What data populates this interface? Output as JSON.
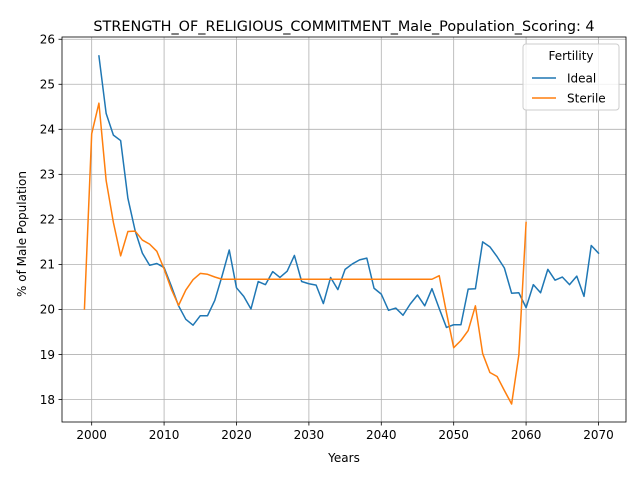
{
  "chart_data": {
    "type": "line",
    "title": "STRENGTH_OF_RELIGIOUS_COMMITMENT_Male_Population_Scoring: 4",
    "xlabel": "Years",
    "ylabel": "% of Male Population",
    "xlim": [
      1995.9,
      2073.8
    ],
    "ylim": [
      17.5,
      26.05
    ],
    "xticks": [
      2000,
      2010,
      2020,
      2030,
      2040,
      2050,
      2060,
      2070
    ],
    "yticks": [
      18,
      19,
      20,
      21,
      22,
      23,
      24,
      25,
      26
    ],
    "grid": true,
    "legend": {
      "title": "Fertility",
      "position": "top-right"
    },
    "series": [
      {
        "name": "Ideal",
        "color": "#1f77b4",
        "points": [
          [
            2001,
            25.63
          ],
          [
            2002,
            24.35
          ],
          [
            2003,
            23.87
          ],
          [
            2004,
            23.75
          ],
          [
            2005,
            22.47
          ],
          [
            2006,
            21.75
          ],
          [
            2007,
            21.25
          ],
          [
            2008,
            20.98
          ],
          [
            2009,
            21.02
          ],
          [
            2010,
            20.93
          ],
          [
            2011,
            20.52
          ],
          [
            2012,
            20.08
          ],
          [
            2013,
            19.78
          ],
          [
            2014,
            19.65
          ],
          [
            2015,
            19.86
          ],
          [
            2016,
            19.86
          ],
          [
            2017,
            20.2
          ],
          [
            2018,
            20.74
          ],
          [
            2019,
            21.32
          ],
          [
            2020,
            20.48
          ],
          [
            2021,
            20.29
          ],
          [
            2022,
            20.01
          ],
          [
            2023,
            20.62
          ],
          [
            2024,
            20.55
          ],
          [
            2025,
            20.84
          ],
          [
            2026,
            20.71
          ],
          [
            2027,
            20.85
          ],
          [
            2028,
            21.2
          ],
          [
            2029,
            20.62
          ],
          [
            2030,
            20.57
          ],
          [
            2031,
            20.54
          ],
          [
            2032,
            20.13
          ],
          [
            2033,
            20.71
          ],
          [
            2034,
            20.44
          ],
          [
            2035,
            20.89
          ],
          [
            2036,
            21.01
          ],
          [
            2037,
            21.1
          ],
          [
            2038,
            21.14
          ],
          [
            2039,
            20.47
          ],
          [
            2040,
            20.34
          ],
          [
            2041,
            19.98
          ],
          [
            2042,
            20.03
          ],
          [
            2043,
            19.87
          ],
          [
            2044,
            20.12
          ],
          [
            2045,
            20.32
          ],
          [
            2046,
            20.08
          ],
          [
            2047,
            20.46
          ],
          [
            2048,
            20.02
          ],
          [
            2049,
            19.6
          ],
          [
            2050,
            19.66
          ],
          [
            2051,
            19.66
          ],
          [
            2052,
            20.45
          ],
          [
            2053,
            20.46
          ],
          [
            2054,
            21.5
          ],
          [
            2055,
            21.39
          ],
          [
            2056,
            21.17
          ],
          [
            2057,
            20.92
          ],
          [
            2058,
            20.36
          ],
          [
            2059,
            20.37
          ],
          [
            2060,
            20.04
          ],
          [
            2061,
            20.55
          ],
          [
            2062,
            20.37
          ],
          [
            2063,
            20.89
          ],
          [
            2064,
            20.65
          ],
          [
            2065,
            20.72
          ],
          [
            2066,
            20.55
          ],
          [
            2067,
            20.74
          ],
          [
            2068,
            20.29
          ],
          [
            2069,
            21.42
          ],
          [
            2070,
            21.25
          ]
        ]
      },
      {
        "name": "Sterile",
        "color": "#ff7f0e",
        "points": [
          [
            1999,
            20.01
          ],
          [
            2000,
            23.9
          ],
          [
            2001,
            24.58
          ],
          [
            2002,
            22.86
          ],
          [
            2003,
            21.93
          ],
          [
            2004,
            21.19
          ],
          [
            2005,
            21.73
          ],
          [
            2006,
            21.74
          ],
          [
            2007,
            21.54
          ],
          [
            2008,
            21.45
          ],
          [
            2009,
            21.29
          ],
          [
            2010,
            20.9
          ],
          [
            2011,
            20.45
          ],
          [
            2012,
            20.09
          ],
          [
            2013,
            20.43
          ],
          [
            2014,
            20.66
          ],
          [
            2015,
            20.8
          ],
          [
            2016,
            20.78
          ],
          [
            2017,
            20.72
          ],
          [
            2018,
            20.67
          ],
          [
            2019,
            20.67
          ],
          [
            2020,
            20.67
          ],
          [
            2030,
            20.67
          ],
          [
            2040,
            20.67
          ],
          [
            2047,
            20.67
          ],
          [
            2048,
            20.75
          ],
          [
            2049,
            19.93
          ],
          [
            2050,
            19.15
          ],
          [
            2051,
            19.31
          ],
          [
            2052,
            19.53
          ],
          [
            2053,
            20.08
          ],
          [
            2054,
            19.02
          ],
          [
            2055,
            18.6
          ],
          [
            2056,
            18.51
          ],
          [
            2057,
            18.2
          ],
          [
            2058,
            17.9
          ],
          [
            2059,
            18.99
          ],
          [
            2060,
            21.93
          ]
        ]
      }
    ]
  }
}
